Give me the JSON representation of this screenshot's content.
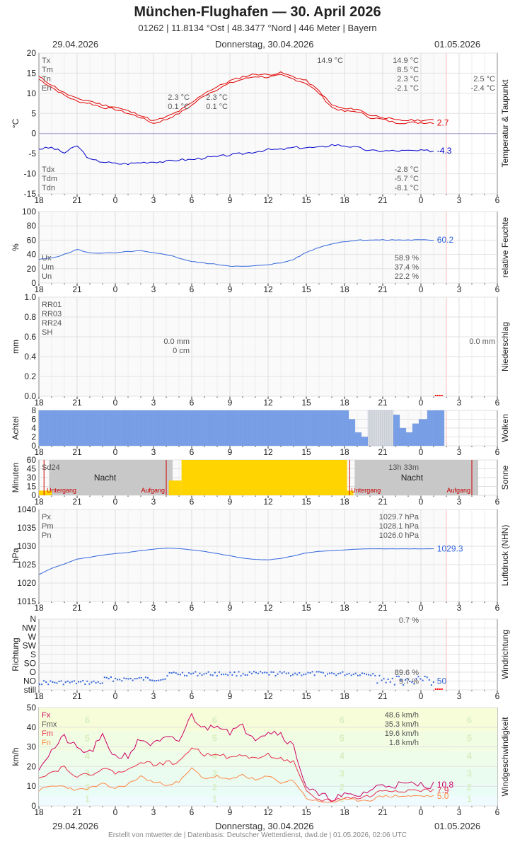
{
  "header": {
    "title": "München-Flughafen  —  30. April 2026",
    "subtitle": "01262  |  11.8134 °Ost  |  48.3477 °Nord  |  446 Meter  |  Bayern",
    "date_left": "29.04.2026",
    "date_center": "Donnerstag, 30.04.2026",
    "date_right": "01.05.2026"
  },
  "footer": "Erstellt von mtwetter.de | Datenbasis: Deutscher Wetterdienst, dwd.de | 01.05.2026, 02:06 UTC",
  "x_ticks": [
    "18",
    "21",
    "0",
    "3",
    "6",
    "9",
    "12",
    "15",
    "18",
    "21",
    "0",
    "3",
    "6"
  ],
  "colors": {
    "temp": "#e00000",
    "dew": "#0000cc",
    "line": "#3366dd",
    "rain": "#ff0000",
    "sun": "#ffd400",
    "wind_fx": "#cc0066",
    "wind_fm": "#e8304a",
    "wind_fn": "#ff8844",
    "cloud": "#7aa0e8"
  },
  "chart_data": [
    {
      "id": "temperature",
      "type": "line",
      "ylabel": "°C",
      "side_label": "Temperatur & Taupunkt",
      "ylim": [
        -15,
        20
      ],
      "yticks": [
        "20",
        "15",
        "10",
        "5",
        "0",
        "-5",
        "-10",
        "-15"
      ],
      "x_hours_from_start": [
        0,
        1,
        2,
        3,
        4,
        5,
        6,
        7,
        8,
        9,
        10,
        11,
        12,
        13,
        14,
        15,
        16,
        17,
        18,
        19,
        20,
        21,
        22,
        23,
        24,
        25,
        26,
        27,
        28,
        29,
        30,
        31
      ],
      "series": [
        {
          "name": "Temperatur",
          "values": [
            13.5,
            11.5,
            9.5,
            8.0,
            7.5,
            6.5,
            6.0,
            5.0,
            4.0,
            2.5,
            3.5,
            5.0,
            7.0,
            9.5,
            11.0,
            12.5,
            13.5,
            14.2,
            14.0,
            14.5,
            13.5,
            12.5,
            10.0,
            6.5,
            5.5,
            5.5,
            4.0,
            3.5,
            2.7,
            2.7,
            2.7,
            2.7
          ],
          "latest": "2.7"
        },
        {
          "name": "Taupunkt",
          "values": [
            -3.8,
            -3.5,
            -4.8,
            -3.0,
            -6.5,
            -7.0,
            -7.5,
            -7.5,
            -7.2,
            -7.0,
            -7.0,
            -6.5,
            -6.5,
            -6.0,
            -5.8,
            -5.3,
            -5.0,
            -4.5,
            -4.0,
            -4.0,
            -3.5,
            -3.5,
            -3.5,
            -2.8,
            -3.0,
            -3.5,
            -4.3,
            -4.3,
            -4.3,
            -4.3,
            -4.3,
            -4.3
          ],
          "latest": "-4.3"
        }
      ],
      "stats_top": {
        "labels": [
          "Tx",
          "Tm",
          "Tn",
          "En"
        ],
        "col_left": [
          "",
          "",
          "2.3 °C",
          "0.1 °C"
        ],
        "col_mid": [
          "",
          "",
          "2.3 °C",
          "0.1 °C"
        ],
        "col_main": [
          "14.9 °C",
          "8.5 °C",
          "2.3 °C",
          "-2.1 °C"
        ],
        "col_extra_tx": "14.9 °C",
        "col_right": [
          "",
          "",
          "2.5 °C",
          "-2.4 °C"
        ]
      },
      "stats_bottom": {
        "labels": [
          "Tdx",
          "Tdm",
          "Tdn"
        ],
        "col_main": [
          "-2.8 °C",
          "-5.7 °C",
          "-8.1 °C"
        ]
      }
    },
    {
      "id": "humidity",
      "type": "line",
      "ylabel": "%",
      "side_label": "relative Feuchte",
      "ylim": [
        0,
        100
      ],
      "yticks": [
        "100",
        "80",
        "60",
        "40",
        "20",
        "0"
      ],
      "series": [
        {
          "name": "Feuchte",
          "values": [
            33,
            35,
            40,
            47,
            42,
            42,
            42,
            44,
            45,
            42,
            40,
            35,
            30,
            28,
            26,
            24,
            23,
            24,
            26,
            28,
            33,
            43,
            50,
            55,
            58,
            60,
            60.2,
            60.2,
            60.2,
            60.2,
            60.2,
            60.2
          ],
          "latest": "60.2"
        }
      ],
      "stats": {
        "labels": [
          "Ux",
          "Um",
          "Un"
        ],
        "col_main": [
          "58.9 %",
          "37.4 %",
          "22.2 %"
        ]
      }
    },
    {
      "id": "precipitation",
      "type": "bar",
      "ylabel": "mm",
      "side_label": "Niederschlag",
      "ylim": [
        0,
        1.0
      ],
      "yticks": [
        "1.0",
        "0.8",
        "0.6",
        "0.4",
        "0.2",
        "0.0"
      ],
      "stats": {
        "labels": [
          "RR01",
          "RR03",
          "RR24",
          "SH"
        ],
        "col_left": [
          "",
          "",
          "0.0 mm",
          "0 cm"
        ],
        "col_right": [
          "",
          "",
          "0.0 mm",
          ""
        ]
      }
    },
    {
      "id": "clouds",
      "type": "bar",
      "ylabel": "Achtel",
      "side_label": "Wolken",
      "ylim": [
        0,
        8
      ],
      "yticks": [
        "8",
        "6",
        "4",
        "2",
        "0"
      ]
    },
    {
      "id": "sunshine",
      "type": "bar",
      "ylabel": "Minuten",
      "side_label": "Sonne",
      "ylim": [
        0,
        60
      ],
      "yticks": [
        "60",
        "45",
        "30",
        "15",
        "0"
      ],
      "labels": {
        "sd24": "Sd24",
        "total": "13h 33m",
        "night": "Nacht",
        "sunset": "Untergang",
        "sunrise": "Aufgang"
      }
    },
    {
      "id": "pressure",
      "type": "line",
      "ylabel": "hPa",
      "side_label": "Luftdruck (NHN)",
      "ylim": [
        1015,
        1040
      ],
      "yticks": [
        "1040",
        "1035",
        "1030",
        "1025",
        "1020",
        "1015"
      ],
      "series": [
        {
          "name": "Luftdruck",
          "values": [
            1022.3,
            1024.0,
            1025.2,
            1026.5,
            1027.0,
            1027.6,
            1028.0,
            1028.3,
            1028.8,
            1029.2,
            1029.5,
            1029.4,
            1029.0,
            1028.6,
            1028.0,
            1027.4,
            1026.8,
            1026.4,
            1026.3,
            1026.7,
            1027.4,
            1028.2,
            1028.6,
            1028.8,
            1029.0,
            1029.2,
            1029.3,
            1029.3,
            1029.3,
            1029.3,
            1029.3,
            1029.3
          ],
          "latest": "1029.3"
        }
      ],
      "stats": {
        "labels": [
          "Px",
          "Pm",
          "Pn"
        ],
        "col_main": [
          "1029.7 hPa",
          "1028.1 hPa",
          "1026.0 hPa"
        ]
      }
    },
    {
      "id": "wind_direction",
      "type": "scatter",
      "ylabel": "Richtung",
      "side_label": "Windrichtung",
      "yticks": [
        "N",
        "NW",
        "W",
        "SW",
        "S",
        "SO",
        "O",
        "NO",
        "still"
      ],
      "stats": {
        "top": "0.7 %",
        "o": "89.6 %",
        "no": "9.7 %",
        "latest": "50"
      }
    },
    {
      "id": "wind_speed",
      "type": "line",
      "ylabel": "km/h",
      "side_label": "Windgeschwindigkeit",
      "ylim": [
        0,
        50
      ],
      "yticks": [
        "50",
        "40",
        "30",
        "20",
        "10",
        "0"
      ],
      "beaufort": [
        "6",
        "5",
        "4",
        "3",
        "2",
        "1"
      ],
      "series": [
        {
          "name": "Fx",
          "values": [
            20,
            28,
            35,
            29,
            27,
            35,
            25,
            26,
            34,
            31,
            34,
            33,
            46,
            39,
            42,
            38,
            40,
            35,
            38,
            37,
            30,
            10,
            5,
            4,
            5,
            5,
            8,
            10.8,
            10.8,
            10.8,
            10.8,
            10.8
          ],
          "latest": "10.8"
        },
        {
          "name": "Fm",
          "values": [
            15,
            17,
            20,
            15,
            16,
            19,
            17,
            18,
            23,
            21,
            22,
            22,
            30,
            26,
            27,
            24,
            26,
            24,
            26,
            24,
            22,
            7,
            3,
            3,
            4,
            4,
            5,
            7.9,
            7.9,
            7.9,
            7.9,
            7.9
          ],
          "latest": "7.9"
        },
        {
          "name": "Fn",
          "values": [
            8,
            10,
            10,
            8,
            9,
            11,
            9,
            11,
            15,
            12,
            11,
            12,
            19,
            14,
            15,
            13,
            16,
            13,
            15,
            12,
            13,
            4,
            2,
            2,
            3,
            3,
            3,
            5.0,
            5.0,
            5.0,
            5.0,
            5.0
          ],
          "latest": "5.0"
        }
      ],
      "stats": {
        "labels": [
          "Fx",
          "Fmx",
          "Fm",
          "Fn"
        ],
        "col_main": [
          "48.6 km/h",
          "35.3 km/h",
          "19.6 km/h",
          "1.8 km/h"
        ]
      }
    }
  ]
}
